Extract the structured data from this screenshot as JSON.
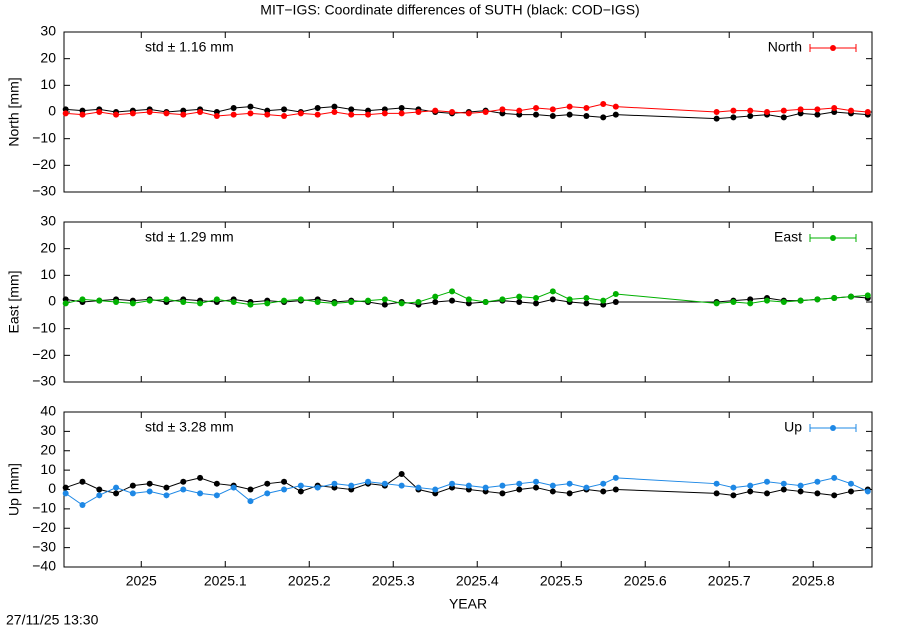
{
  "timestamp": "27/11/25 13:30",
  "chart_data": [
    {
      "type": "line",
      "title": "MIT−IGS: Coordinate differences of SUTH (black: COD−IGS)",
      "ylabel": "North [mm]",
      "annotation": "std ± 1.16 mm",
      "x": [
        2024.91,
        2024.93,
        2024.95,
        2024.97,
        2024.99,
        2025.01,
        2025.03,
        2025.05,
        2025.07,
        2025.09,
        2025.11,
        2025.13,
        2025.15,
        2025.17,
        2025.19,
        2025.21,
        2025.23,
        2025.25,
        2025.27,
        2025.29,
        2025.31,
        2025.33,
        2025.35,
        2025.37,
        2025.39,
        2025.41,
        2025.43,
        2025.45,
        2025.47,
        2025.49,
        2025.51,
        2025.53,
        2025.55,
        2025.565,
        2025.685,
        2025.705,
        2025.725,
        2025.745,
        2025.765,
        2025.785,
        2025.805,
        2025.825,
        2025.845,
        2025.865
      ],
      "ylim": [
        -30,
        30
      ],
      "yticks": [
        {
          "value": -30,
          "label": "−30"
        },
        {
          "value": -20,
          "label": "−20"
        },
        {
          "value": -10,
          "label": "−10"
        },
        0,
        10,
        20,
        30
      ],
      "legend": "top-right",
      "series": [
        {
          "color": "#000000",
          "values": [
            1,
            0.5,
            1,
            0,
            0.5,
            1,
            0,
            0.5,
            1,
            0,
            1.5,
            2,
            0.5,
            1,
            0,
            1.5,
            2,
            1,
            0.5,
            1,
            1.5,
            1,
            0,
            -0.5,
            0,
            0.5,
            -0.5,
            -1,
            -1,
            -1.5,
            -1,
            -1.5,
            -2,
            -1,
            -2.5,
            -2,
            -1.5,
            -1,
            -2,
            -0.5,
            -1,
            0,
            -0.5,
            -1
          ]
        },
        {
          "name": "North",
          "color": "#ff0000",
          "values": [
            -0.5,
            -1,
            0,
            -1,
            -0.5,
            0,
            -0.5,
            -1,
            0,
            -1.5,
            -1,
            -0.5,
            -1,
            -1.5,
            -0.5,
            -1,
            0,
            -1,
            -1,
            -0.5,
            -0.5,
            0,
            0.5,
            0,
            -0.5,
            0,
            1,
            0.5,
            1.5,
            1,
            2,
            1.5,
            3,
            2,
            0,
            0.5,
            0.5,
            0,
            0.5,
            1,
            1,
            1.5,
            0.5,
            0
          ]
        }
      ]
    },
    {
      "type": "line",
      "ylabel": "East [mm]",
      "annotation": "std ± 1.29 mm",
      "x": [
        2024.91,
        2024.93,
        2024.95,
        2024.97,
        2024.99,
        2025.01,
        2025.03,
        2025.05,
        2025.07,
        2025.09,
        2025.11,
        2025.13,
        2025.15,
        2025.17,
        2025.19,
        2025.21,
        2025.23,
        2025.25,
        2025.27,
        2025.29,
        2025.31,
        2025.33,
        2025.35,
        2025.37,
        2025.39,
        2025.41,
        2025.43,
        2025.45,
        2025.47,
        2025.49,
        2025.51,
        2025.53,
        2025.55,
        2025.565,
        2025.685,
        2025.705,
        2025.725,
        2025.745,
        2025.765,
        2025.785,
        2025.805,
        2025.825,
        2025.845,
        2025.865
      ],
      "ylim": [
        -30,
        30
      ],
      "yticks": [
        {
          "value": -30,
          "label": "−30"
        },
        {
          "value": -20,
          "label": "−20"
        },
        {
          "value": -10,
          "label": "−10"
        },
        0,
        10,
        20,
        30
      ],
      "legend": "top-right",
      "series": [
        {
          "color": "#000000",
          "values": [
            1,
            0,
            0.5,
            1,
            0.5,
            1,
            0,
            1,
            0.5,
            0,
            1,
            0,
            0.5,
            0,
            0.5,
            1,
            0,
            0.5,
            0,
            -1,
            0,
            -1,
            0,
            0.5,
            -0.5,
            0,
            0.5,
            0,
            -0.5,
            1,
            0,
            -0.5,
            -1,
            0,
            0,
            0.5,
            1,
            1.5,
            0.5,
            0.5,
            1,
            1.5,
            2,
            1.5
          ]
        },
        {
          "name": "East",
          "color": "#00b000",
          "values": [
            -0.5,
            1,
            0.5,
            0,
            -0.5,
            0.5,
            1,
            0,
            -0.5,
            1,
            0,
            -1,
            -0.5,
            0.5,
            1,
            0,
            -0.5,
            0,
            0.5,
            1,
            -0.5,
            0,
            2,
            4,
            1,
            0,
            1,
            2,
            1.5,
            4,
            1,
            1.5,
            0.5,
            3,
            -0.5,
            0,
            -0.5,
            0.5,
            0,
            0.5,
            1,
            1.5,
            2,
            2.5
          ]
        }
      ]
    },
    {
      "type": "line",
      "ylabel": "Up [mm]",
      "xlabel": "YEAR",
      "annotation": "std ± 3.28 mm",
      "x": [
        2024.91,
        2024.93,
        2024.95,
        2024.97,
        2024.99,
        2025.01,
        2025.03,
        2025.05,
        2025.07,
        2025.09,
        2025.11,
        2025.13,
        2025.15,
        2025.17,
        2025.19,
        2025.21,
        2025.23,
        2025.25,
        2025.27,
        2025.29,
        2025.31,
        2025.33,
        2025.35,
        2025.37,
        2025.39,
        2025.41,
        2025.43,
        2025.45,
        2025.47,
        2025.49,
        2025.51,
        2025.53,
        2025.55,
        2025.565,
        2025.685,
        2025.705,
        2025.725,
        2025.745,
        2025.765,
        2025.785,
        2025.805,
        2025.825,
        2025.845,
        2025.865
      ],
      "xlim": [
        2024.908,
        2025.87
      ],
      "xticks": [
        2025,
        2025.1,
        2025.2,
        2025.3,
        2025.4,
        2025.5,
        2025.6,
        2025.7,
        2025.8
      ],
      "ylim": [
        -40,
        40
      ],
      "yticks": [
        {
          "value": -40,
          "label": "−40"
        },
        {
          "value": -30,
          "label": "−30"
        },
        {
          "value": -20,
          "label": "−20"
        },
        {
          "value": -10,
          "label": "−10"
        },
        0,
        10,
        20,
        30,
        40
      ],
      "legend": "top-right",
      "series": [
        {
          "color": "#000000",
          "values": [
            1,
            4,
            0,
            -2,
            2,
            3,
            1,
            4,
            6,
            3,
            2,
            0,
            3,
            4,
            -1,
            2,
            1,
            0,
            3,
            2,
            8,
            0,
            -2,
            1,
            0,
            -1,
            -2,
            0,
            1,
            -1,
            -2,
            0,
            -1,
            0,
            -2,
            -3,
            -1,
            -2,
            0,
            -1,
            -2,
            -3,
            -1,
            0
          ]
        },
        {
          "name": "Up",
          "color": "#1e88e5",
          "values": [
            -2,
            -8,
            -3,
            1,
            -2,
            -1,
            -3,
            0,
            -2,
            -3,
            1,
            -6,
            -2,
            0,
            2,
            1,
            3,
            2,
            4,
            3,
            2,
            1,
            0,
            3,
            2,
            1,
            2,
            3,
            4,
            2,
            3,
            1,
            3,
            6,
            3,
            1,
            2,
            4,
            3,
            2,
            4,
            6,
            3,
            -1
          ]
        }
      ]
    }
  ]
}
